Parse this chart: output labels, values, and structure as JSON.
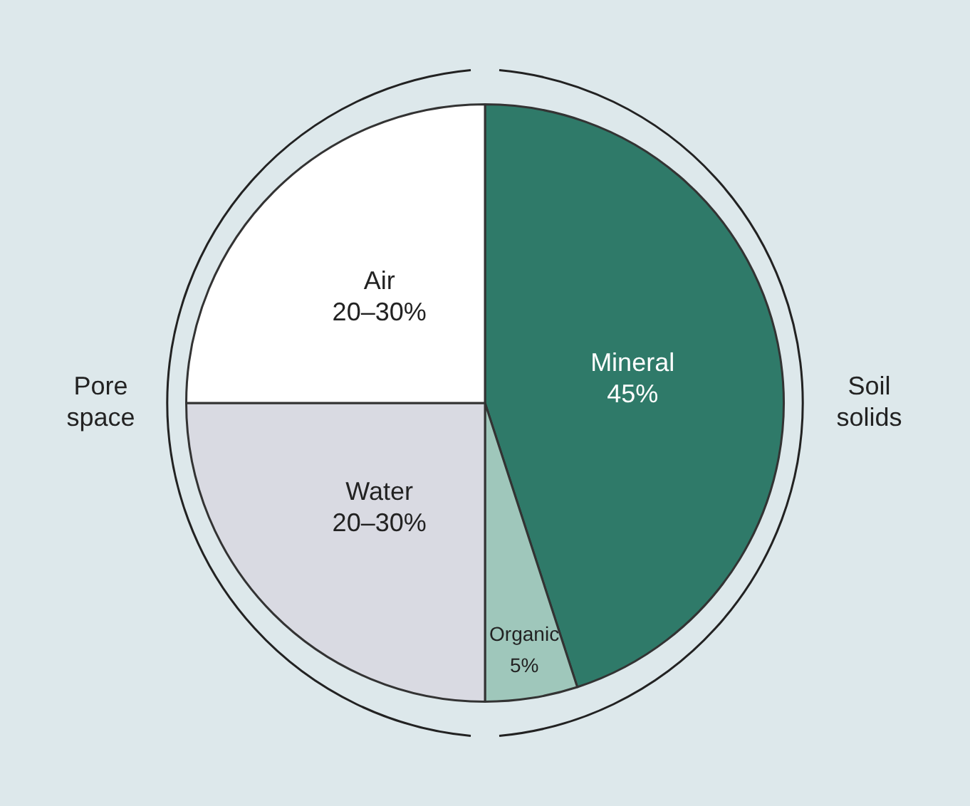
{
  "chart_data": {
    "type": "pie",
    "categories": [
      "Mineral",
      "Organic",
      "Water",
      "Air"
    ],
    "values": [
      45,
      5,
      25,
      25
    ],
    "value_labels": [
      "45%",
      "5%",
      null,
      null
    ],
    "colors": [
      "#2f7a69",
      "#9fc7bb",
      "#d9dae2",
      "#ffffff"
    ],
    "annotations": [
      "Pore space",
      "Soil solids",
      {
        "text": "20–30%",
        "x": "Water"
      },
      {
        "text": "20–30%",
        "x": "Air"
      }
    ],
    "legend": false
  }
}
